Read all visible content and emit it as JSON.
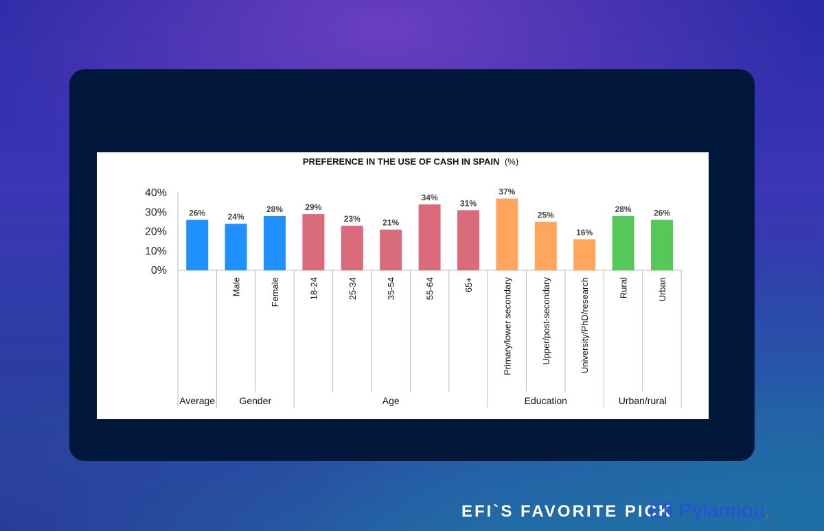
{
  "colors": {
    "average": "#1e90ff",
    "gender": "#1e90ff",
    "age": "#d96b7a",
    "education": "#ffa65c",
    "urban_rural": "#56c85a",
    "card": "#02183a",
    "footer_brand": "#2a4fe0",
    "footer_dot": "#e0453a"
  },
  "footer": {
    "left_text": "EFI`S FAVORITE PICK",
    "brand_name": "Efi Pylarinou",
    "brand_dot": "."
  },
  "chart_data": {
    "type": "bar",
    "title": "PREFERENCE IN THE USE OF CASH IN SPAIN",
    "title_suffix": "(%)",
    "yticks": [
      "40%",
      "30%",
      "20%",
      "10%",
      "0%"
    ],
    "ylim": [
      0,
      40
    ],
    "unit": "%",
    "groups": [
      {
        "name": "Average",
        "color_key": "average",
        "bars": [
          {
            "label": "",
            "value": 26
          }
        ]
      },
      {
        "name": "Gender",
        "color_key": "gender",
        "bars": [
          {
            "label": "Male",
            "value": 24
          },
          {
            "label": "Female",
            "value": 28
          }
        ]
      },
      {
        "name": "Age",
        "color_key": "age",
        "bars": [
          {
            "label": "18-24",
            "value": 29
          },
          {
            "label": "25-34",
            "value": 23
          },
          {
            "label": "35-54",
            "value": 21
          },
          {
            "label": "55-64",
            "value": 34
          },
          {
            "label": "65+",
            "value": 31
          }
        ]
      },
      {
        "name": "Education",
        "color_key": "education",
        "bars": [
          {
            "label": "Primary/lower secondary",
            "value": 37
          },
          {
            "label": "Upper/post-secondary",
            "value": 25
          },
          {
            "label": "University/PhD/research",
            "value": 16
          }
        ]
      },
      {
        "name": "Urban/rural",
        "color_key": "urban_rural",
        "bars": [
          {
            "label": "Rural",
            "value": 28
          },
          {
            "label": "Urban",
            "value": 26
          }
        ]
      }
    ]
  }
}
